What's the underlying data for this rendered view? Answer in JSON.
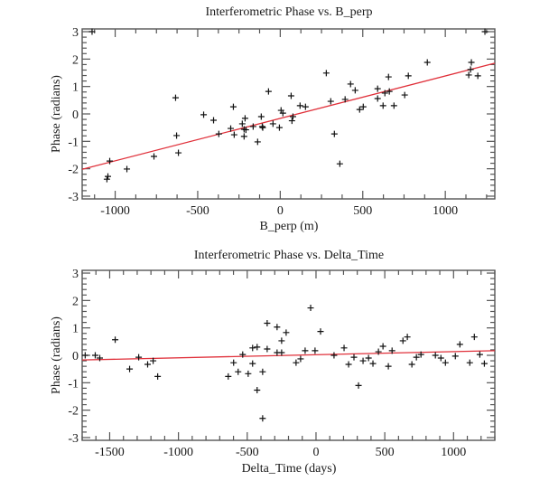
{
  "chart_data": [
    {
      "type": "scatter",
      "title": "Interferometric Phase vs. B_perp",
      "xlabel": "B_perp (m)",
      "ylabel": "Phase (radians)",
      "xlim": [
        -1200,
        1300
      ],
      "ylim": [
        -3.1,
        3.1
      ],
      "xticks": [
        -1000,
        -500,
        0,
        500,
        1000
      ],
      "xtick_labels": [
        "-1000",
        "-500",
        "0",
        "500",
        "1000"
      ],
      "yticks": [
        -3,
        -2,
        -1,
        0,
        1,
        2,
        3
      ],
      "ytick_labels": [
        "-3",
        "-2",
        "-1",
        "0",
        "1",
        "2",
        "3"
      ],
      "x_minor_step": 125,
      "y_minor_step": 0.2,
      "grid": false,
      "marker": "plus",
      "marker_color": "#111111",
      "fit_line": {
        "x": [
          -1200,
          1300
        ],
        "y": [
          -2.02,
          1.85
        ],
        "color": "#e0303a"
      },
      "points": [
        {
          "x": -1140,
          "y": 3.0
        },
        {
          "x": -1044,
          "y": -2.28
        },
        {
          "x": -1050,
          "y": -2.38
        },
        {
          "x": -1033,
          "y": -1.72
        },
        {
          "x": -929,
          "y": -2.01
        },
        {
          "x": -765,
          "y": -1.55
        },
        {
          "x": -634,
          "y": 0.59
        },
        {
          "x": -628,
          "y": -0.79
        },
        {
          "x": -617,
          "y": -1.42
        },
        {
          "x": -464,
          "y": -0.03
        },
        {
          "x": -404,
          "y": -0.23
        },
        {
          "x": -372,
          "y": -0.73
        },
        {
          "x": -284,
          "y": 0.26
        },
        {
          "x": -300,
          "y": -0.53
        },
        {
          "x": -279,
          "y": -0.76
        },
        {
          "x": -230,
          "y": -0.36
        },
        {
          "x": -213,
          "y": -0.16
        },
        {
          "x": -219,
          "y": -0.56
        },
        {
          "x": -208,
          "y": -0.58
        },
        {
          "x": -219,
          "y": -0.82
        },
        {
          "x": -164,
          "y": -0.46
        },
        {
          "x": -137,
          "y": -1.02
        },
        {
          "x": -115,
          "y": -0.1
        },
        {
          "x": -109,
          "y": -0.46
        },
        {
          "x": -106,
          "y": -0.5
        },
        {
          "x": -71,
          "y": 0.82
        },
        {
          "x": -44,
          "y": -0.36
        },
        {
          "x": -5,
          "y": -0.5
        },
        {
          "x": 5,
          "y": 0.13
        },
        {
          "x": 16,
          "y": 0.03
        },
        {
          "x": 66,
          "y": 0.66
        },
        {
          "x": 71,
          "y": -0.25
        },
        {
          "x": 77,
          "y": -0.1
        },
        {
          "x": 120,
          "y": 0.3
        },
        {
          "x": 153,
          "y": 0.26
        },
        {
          "x": 279,
          "y": 1.49
        },
        {
          "x": 306,
          "y": 0.46
        },
        {
          "x": 328,
          "y": -0.73
        },
        {
          "x": 361,
          "y": -1.82
        },
        {
          "x": 393,
          "y": 0.53
        },
        {
          "x": 426,
          "y": 1.09
        },
        {
          "x": 454,
          "y": 0.86
        },
        {
          "x": 481,
          "y": 0.16
        },
        {
          "x": 503,
          "y": 0.26
        },
        {
          "x": 590,
          "y": 0.92
        },
        {
          "x": 590,
          "y": 0.56
        },
        {
          "x": 623,
          "y": 0.3
        },
        {
          "x": 634,
          "y": 0.76
        },
        {
          "x": 661,
          "y": 0.82
        },
        {
          "x": 656,
          "y": 1.35
        },
        {
          "x": 689,
          "y": 0.3
        },
        {
          "x": 754,
          "y": 0.69
        },
        {
          "x": 776,
          "y": 1.39
        },
        {
          "x": 891,
          "y": 1.88
        },
        {
          "x": 1142,
          "y": 1.42
        },
        {
          "x": 1153,
          "y": 1.62
        },
        {
          "x": 1158,
          "y": 1.88
        },
        {
          "x": 1197,
          "y": 1.39
        },
        {
          "x": 1240,
          "y": 3.0
        }
      ]
    },
    {
      "type": "scatter",
      "title": "Interferometric Phase vs. Delta_Time",
      "xlabel": "Delta_Time (days)",
      "ylabel": "Phase (radians)",
      "xlim": [
        -1700,
        1300
      ],
      "ylim": [
        -3.1,
        3.1
      ],
      "xticks": [
        -1500,
        -1000,
        -500,
        0,
        500,
        1000
      ],
      "xtick_labels": [
        "-1500",
        "-1000",
        "-500",
        "0",
        "500",
        "1000"
      ],
      "yticks": [
        -3,
        -2,
        -1,
        0,
        1,
        2,
        3
      ],
      "ytick_labels": [
        "-3",
        "-2",
        "-1",
        "0",
        "1",
        "2",
        "3"
      ],
      "x_minor_step": 100,
      "y_minor_step": 0.2,
      "grid": false,
      "marker": "plus",
      "marker_color": "#111111",
      "fit_line": {
        "x": [
          -1700,
          1300
        ],
        "y": [
          -0.17,
          0.17
        ],
        "color": "#e0303a"
      },
      "points": [
        {
          "x": -1678,
          "y": 0.0
        },
        {
          "x": -1605,
          "y": 0.0
        },
        {
          "x": -1572,
          "y": -0.1
        },
        {
          "x": -1460,
          "y": 0.57
        },
        {
          "x": -1355,
          "y": -0.5
        },
        {
          "x": -1289,
          "y": -0.07
        },
        {
          "x": -1224,
          "y": -0.33
        },
        {
          "x": -1184,
          "y": -0.2
        },
        {
          "x": -1151,
          "y": -0.77
        },
        {
          "x": -638,
          "y": -0.77
        },
        {
          "x": -599,
          "y": -0.27
        },
        {
          "x": -566,
          "y": -0.6
        },
        {
          "x": -533,
          "y": 0.03
        },
        {
          "x": -493,
          "y": -0.67
        },
        {
          "x": -461,
          "y": 0.27
        },
        {
          "x": -461,
          "y": -0.3
        },
        {
          "x": -428,
          "y": 0.3
        },
        {
          "x": -428,
          "y": -1.27
        },
        {
          "x": -388,
          "y": -0.6
        },
        {
          "x": -388,
          "y": -2.3
        },
        {
          "x": -355,
          "y": 1.17
        },
        {
          "x": -355,
          "y": 0.23
        },
        {
          "x": -283,
          "y": 1.03
        },
        {
          "x": -283,
          "y": 0.1
        },
        {
          "x": -250,
          "y": 0.1
        },
        {
          "x": -250,
          "y": 0.53
        },
        {
          "x": -217,
          "y": 0.83
        },
        {
          "x": -145,
          "y": -0.27
        },
        {
          "x": -112,
          "y": -0.13
        },
        {
          "x": -79,
          "y": 0.17
        },
        {
          "x": -39,
          "y": 1.73
        },
        {
          "x": -7,
          "y": 0.17
        },
        {
          "x": 33,
          "y": 0.87
        },
        {
          "x": 131,
          "y": 0.0
        },
        {
          "x": 204,
          "y": 0.27
        },
        {
          "x": 237,
          "y": -0.33
        },
        {
          "x": 276,
          "y": -0.07
        },
        {
          "x": 309,
          "y": -1.1
        },
        {
          "x": 342,
          "y": -0.2
        },
        {
          "x": 382,
          "y": -0.1
        },
        {
          "x": 414,
          "y": -0.3
        },
        {
          "x": 454,
          "y": 0.13
        },
        {
          "x": 487,
          "y": 0.33
        },
        {
          "x": 526,
          "y": -0.4
        },
        {
          "x": 553,
          "y": 0.17
        },
        {
          "x": 632,
          "y": 0.53
        },
        {
          "x": 664,
          "y": 0.67
        },
        {
          "x": 697,
          "y": -0.33
        },
        {
          "x": 730,
          "y": -0.07
        },
        {
          "x": 763,
          "y": 0.03
        },
        {
          "x": 868,
          "y": 0.0
        },
        {
          "x": 908,
          "y": -0.1
        },
        {
          "x": 941,
          "y": -0.27
        },
        {
          "x": 1013,
          "y": -0.03
        },
        {
          "x": 1046,
          "y": 0.4
        },
        {
          "x": 1118,
          "y": -0.27
        },
        {
          "x": 1151,
          "y": 0.67
        },
        {
          "x": 1191,
          "y": 0.03
        },
        {
          "x": 1224,
          "y": -0.3
        }
      ]
    }
  ]
}
